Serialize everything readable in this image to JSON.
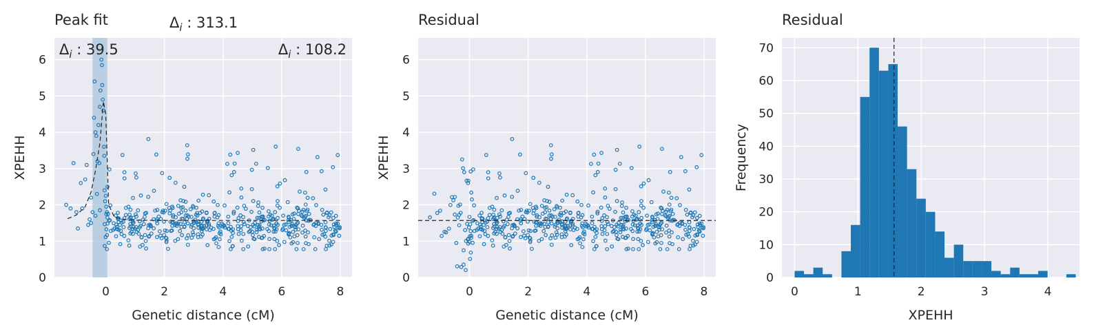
{
  "chart_data": [
    {
      "type": "scatter",
      "title": "Peak fit",
      "xlabel": "Genetic distance (cM)",
      "ylabel": "XPEHH",
      "xlim": [
        -1.75,
        8.4
      ],
      "ylim": [
        0,
        6.6
      ],
      "xticks": [
        0,
        2,
        4,
        6,
        8
      ],
      "yticks": [
        0,
        1,
        2,
        3,
        4,
        5,
        6
      ],
      "grid": true,
      "baseline": 1.57,
      "highlight_region": [
        -0.45,
        0.05
      ],
      "annotations": [
        {
          "label": "Δ",
          "sub": "i",
          "text": " : 313.1",
          "pos": "above-axes-center"
        },
        {
          "label": "Δ",
          "sub": "i",
          "text": " : 39.5",
          "pos": "top-left"
        },
        {
          "label": "Δ",
          "sub": "i",
          "text": " : 108.2",
          "pos": "top-right"
        }
      ],
      "fit_line": {
        "x": [
          -1.3,
          -1.0,
          -0.7,
          -0.5,
          -0.35,
          -0.2,
          -0.08,
          0.0,
          0.1,
          0.3,
          0.8,
          2,
          4,
          6,
          8
        ],
        "y": [
          1.62,
          1.72,
          1.95,
          2.35,
          2.95,
          3.7,
          4.85,
          4.5,
          2.0,
          1.65,
          1.58,
          1.57,
          1.57,
          1.57,
          1.57
        ]
      },
      "points_x": [],
      "points_y": []
    },
    {
      "type": "scatter",
      "title": "Residual",
      "xlabel": "Genetic distance (cM)",
      "ylabel": "XPEHH",
      "xlim": [
        -1.75,
        8.4
      ],
      "ylim": [
        0,
        6.6
      ],
      "xticks": [
        0,
        2,
        4,
        6,
        8
      ],
      "yticks": [
        0,
        1,
        2,
        3,
        4,
        5,
        6
      ],
      "grid": true,
      "baseline": 1.57,
      "points_x": [],
      "points_y": []
    },
    {
      "type": "bar",
      "title": "Residual",
      "xlabel": "XPEHH",
      "ylabel": "Frequency",
      "xlim": [
        -0.2,
        4.5
      ],
      "ylim": [
        0,
        73
      ],
      "xticks": [
        0,
        1,
        2,
        3,
        4
      ],
      "yticks": [
        0,
        10,
        20,
        30,
        40,
        50,
        60,
        70
      ],
      "grid": true,
      "bin_start": 0.0,
      "bin_width": 0.148,
      "values": [
        2,
        1,
        3,
        1,
        0,
        8,
        16,
        55,
        70,
        63,
        65,
        46,
        33,
        24,
        20,
        14,
        6,
        10,
        5,
        5,
        5,
        2,
        1,
        3,
        1,
        1,
        2,
        0,
        0,
        1
      ],
      "median_line": 1.57
    }
  ],
  "colors": {
    "axes_bg": "#eaeaf2",
    "grid": "#ffffff",
    "point": "#1f77b4",
    "bar": "#1f77b4",
    "highlight": "#a9c4dc",
    "text": "#262626"
  }
}
